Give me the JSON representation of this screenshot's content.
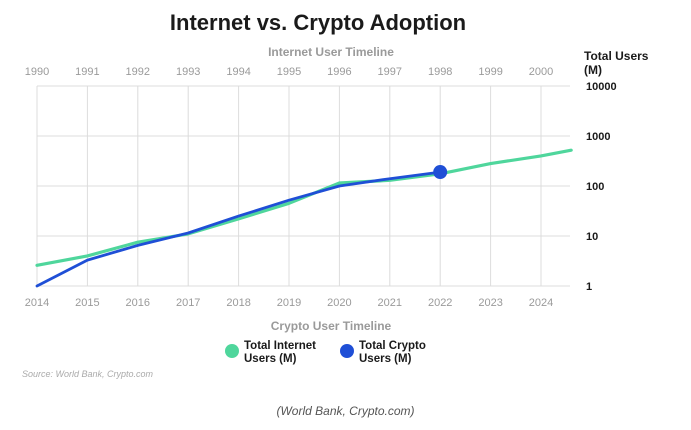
{
  "chart_data": {
    "type": "line",
    "title": "Internet vs. Crypto Adoption",
    "top_axis_title": "Internet User Timeline",
    "bottom_axis_title": "Crypto User Timeline",
    "y_axis_title_line1": "Total Users",
    "y_axis_title_line2": "(M)",
    "top_x_ticks": [
      "1990",
      "1991",
      "1992",
      "1993",
      "1994",
      "1995",
      "1996",
      "1997",
      "1998",
      "1999",
      "2000"
    ],
    "bottom_x_ticks": [
      "2014",
      "2015",
      "2016",
      "2017",
      "2018",
      "2019",
      "2020",
      "2021",
      "2022",
      "2023",
      "2024"
    ],
    "y_ticks": [
      {
        "value": 1,
        "label": "1"
      },
      {
        "value": 10,
        "label": "10"
      },
      {
        "value": 100,
        "label": "100"
      },
      {
        "value": 1000,
        "label": "1000"
      },
      {
        "value": 10000,
        "label": "10000"
      }
    ],
    "y_scale": "log",
    "ylim": [
      1,
      10000
    ],
    "grid": true,
    "series": [
      {
        "name_line1": "Total Internet",
        "name_line2": "Users (M)",
        "axis": "top",
        "color": "#4fd69c",
        "x": [
          1990,
          1991,
          1992,
          1993,
          1994,
          1995,
          1996,
          1997,
          1998,
          1999,
          2000,
          2000.6
        ],
        "y": [
          2.6,
          4,
          7.5,
          11,
          22,
          45,
          115,
          130,
          175,
          280,
          400,
          520
        ]
      },
      {
        "name_line1": "Total Crypto",
        "name_line2": "Users (M)",
        "axis": "bottom",
        "color": "#1f4fd6",
        "x": [
          2014,
          2015,
          2016,
          2017,
          2018,
          2019,
          2020,
          2021,
          2022
        ],
        "y": [
          1,
          3.3,
          6.5,
          11.5,
          25,
          52,
          100,
          140,
          190
        ],
        "highlight_last": true
      }
    ]
  },
  "source_text": "Source: World Bank, Crypto.com",
  "caption": "(World Bank, Crypto.com)"
}
